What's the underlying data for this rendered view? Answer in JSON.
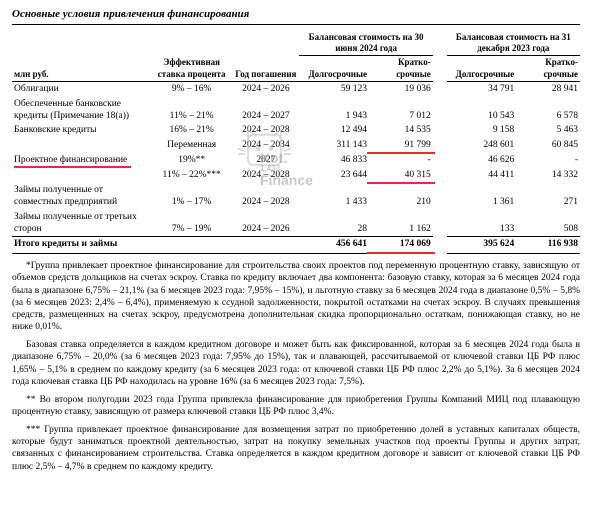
{
  "title": "Основные условия привлечения финансирования",
  "unit_label": "млн руб.",
  "columns": {
    "rate": "Эффективная ставка процента",
    "year": "Год погашения",
    "group1": "Балансовая стоимость на 30 июня 2024 года",
    "group2": "Балансовая стоимость на 31 декабря 2023 года",
    "long": "Долгосрочные",
    "short": "Кратко-срочные"
  },
  "rows": [
    {
      "label": "Облигации",
      "rate": "9% – 16%",
      "year": "2024 – 2026",
      "a": "59 123",
      "b": "19 036",
      "c": "34 791",
      "d": "28 941"
    },
    {
      "label": "Обеспеченные банковские кредиты (Примечание 18(а))",
      "rate": "11% – 21%",
      "year": "2024 – 2027",
      "a": "1 943",
      "b": "7 012",
      "c": "10 543",
      "d": "6 578"
    },
    {
      "label": "Банковские кредиты",
      "rate": "16% – 21%",
      "year": "2024 – 2028",
      "a": "12 494",
      "b": "14 535",
      "c": "9 158",
      "d": "5 463"
    },
    {
      "label": "",
      "rate": "Переменная",
      "year": "2024 – 2034",
      "a": "311 143",
      "b": "91 799",
      "c": "248 601",
      "d": "60 845",
      "hl_b": true
    },
    {
      "label": "Проектное финансирование",
      "rate": "19%**",
      "year": "2027",
      "a": "46 833",
      "b": "-",
      "c": "46 626",
      "d": "-",
      "hl_label": true
    },
    {
      "label": "",
      "rate": "11% – 22%***",
      "year": "2024 – 2028",
      "a": "23 644",
      "b": "40 315",
      "c": "44 411",
      "d": "14 332",
      "hl_b": true
    },
    {
      "label": "Займы полученные от совместных предприятий",
      "rate": "1% – 17%",
      "year": "2024 – 2028",
      "a": "1 433",
      "b": "210",
      "c": "1 361",
      "d": "271"
    },
    {
      "label": "Займы полученные от третьих сторон",
      "rate": "7% – 19%",
      "year": "2024 – 2026",
      "a": "28",
      "b": "1 162",
      "c": "133",
      "d": "508"
    }
  ],
  "totals": {
    "label": "Итого кредиты и займы",
    "a": "456 641",
    "b": "174 069",
    "c": "395 624",
    "d": "116 938",
    "hl_b": true
  },
  "watermark": {
    "num": "1,433",
    "brand1": "Kot.",
    "brand2": "Finance"
  },
  "notes": [
    "*Группа привлекает проектное финансирование для строительства своих проектов под переменную процентную ставку, зависящую от объемов средств дольщиков на счетах эскроу. Ставка по кредиту включает два компонента: базовую ставку, которая за 6 месяцев 2024 года была в диапазоне 6,75% – 21,1% (за 6 месяцев 2023 года: 7,95% – 15%), и льготную ставку за 6 месяцев 2024 года в диапазоне 0,5% – 5,8% (за 6 месяцев 2023: 2,4% – 6,4%), применяемую к ссудной задолженности, покрытой остатками на счетах эскроу. В случаях превышения средств, размещенных на счетах эскроу, предусмотрена дополнительная скидка пропорционально остаткам, понижающая ставку, но не ниже 0,01%.",
    "Базовая ставка определяется в каждом кредитном договоре и может быть как фиксированной, которая за 6 месяцев 2024 года была в диапазоне 6,75% – 20,0% (за 6 месяцев 2023 года: 7,95% до 15%), так и плавающей, рассчитываемой от ключевой ставки ЦБ РФ плюс 1,65% – 5,1% в среднем по каждому кредиту (за 6 месяцев 2023 года: от ключевой ставки ЦБ РФ плюс 2,2% до 5,1%). За 6 месяцев 2024 года ключевая ставка ЦБ РФ находилась на уровне 16% (за 6 месяцев 2023 года: 7,5%).",
    "** Во втором полугодии 2023 года Группа привлекла финансирование для приобретения Группы Компаний МИЦ под плавающую процентную ставку, зависящую от размера ключевой ставки ЦБ РФ плюс 3,4%.",
    "*** Группа привлекает проектное финансирование для возмещения затрат по приобретению долей в уставных капиталах обществ, которые будут заниматься проектной деятельностью, затрат на покупку земельных участков под проекты Группы и других затрат, связанных с финансированием строительства. Ставка определяется в каждом кредитном договоре и зависит от ключевой ставки ЦБ РФ плюс 2,5% – 4,7% в среднем по каждому кредиту."
  ],
  "colors": {
    "highlight": "#e03030",
    "text": "#000000",
    "bg": "#ffffff",
    "wm": "#9c9c9c"
  }
}
